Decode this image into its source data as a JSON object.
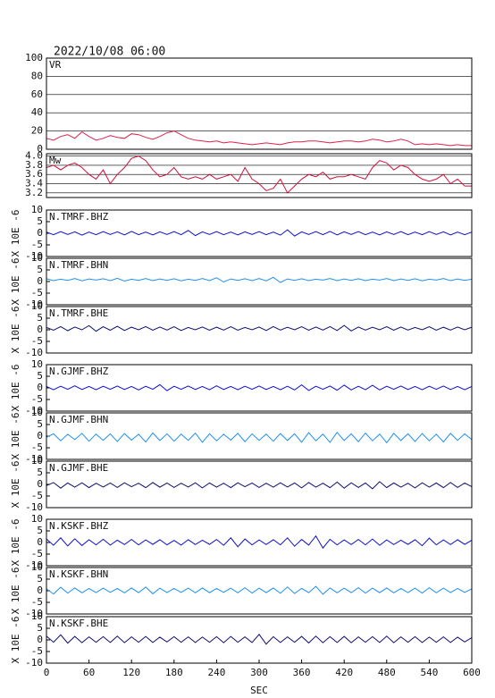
{
  "chart_data": {
    "type": "line",
    "title": "2022/10/08 06:00",
    "xlabel": "SEC",
    "xlim": [
      0,
      600
    ],
    "xticks": [
      0,
      60,
      120,
      180,
      240,
      300,
      360,
      420,
      480,
      540,
      600
    ],
    "x": [
      0,
      10,
      20,
      30,
      40,
      50,
      60,
      70,
      80,
      90,
      100,
      110,
      120,
      130,
      140,
      150,
      160,
      170,
      180,
      190,
      200,
      210,
      220,
      230,
      240,
      250,
      260,
      270,
      280,
      290,
      300,
      310,
      320,
      330,
      340,
      350,
      360,
      370,
      380,
      390,
      400,
      410,
      420,
      430,
      440,
      450,
      460,
      470,
      480,
      490,
      500,
      510,
      520,
      530,
      540,
      550,
      560,
      570,
      580,
      590,
      600
    ],
    "panels": [
      {
        "name": "VR",
        "ylim": [
          0,
          100
        ],
        "yticks": [
          0,
          20,
          40,
          60,
          80,
          100
        ],
        "grid": true,
        "series": [
          {
            "color": "#e0204a",
            "values": [
              12,
              10,
              14,
              16,
              12,
              19,
              14,
              10,
              12,
              15,
              13,
              12,
              17,
              16,
              13,
              11,
              14,
              18,
              20,
              16,
              12,
              10,
              9,
              8,
              9,
              7,
              8,
              7,
              6,
              5,
              6,
              7,
              6,
              5,
              7,
              8,
              8,
              9,
              9,
              8,
              7,
              8,
              9,
              9,
              8,
              9,
              11,
              10,
              8,
              9,
              11,
              9,
              5,
              6,
              5,
              6,
              5,
              4,
              5,
              4,
              4
            ]
          }
        ]
      },
      {
        "name": "Mw",
        "ylim": [
          3.1,
          4.05
        ],
        "yticks": [
          3.2,
          3.4,
          3.6,
          3.8,
          {
            "value": 4,
            "label": "4.0"
          }
        ],
        "grid": true,
        "series": [
          {
            "color": "#d0103c",
            "values": [
              3.75,
              3.8,
              3.7,
              3.8,
              3.85,
              3.75,
              3.6,
              3.5,
              3.7,
              3.4,
              3.6,
              3.75,
              3.95,
              4.0,
              3.9,
              3.7,
              3.55,
              3.6,
              3.75,
              3.55,
              3.5,
              3.55,
              3.5,
              3.6,
              3.5,
              3.55,
              3.6,
              3.45,
              3.75,
              3.5,
              3.4,
              3.25,
              3.3,
              3.5,
              3.2,
              3.35,
              3.5,
              3.6,
              3.55,
              3.65,
              3.5,
              3.55,
              3.55,
              3.6,
              3.55,
              3.5,
              3.75,
              3.9,
              3.85,
              3.7,
              3.8,
              3.75,
              3.6,
              3.5,
              3.45,
              3.5,
              3.6,
              3.4,
              3.5,
              3.35,
              3.35
            ]
          }
        ]
      },
      {
        "name": "N.TMRF.BHZ",
        "ylabel": "X 10E -6",
        "ylim": [
          -10,
          10
        ],
        "yticks": [
          -10,
          -5,
          0,
          5,
          10
        ],
        "series": [
          {
            "color": "#1010d0",
            "values": [
              0.5,
              -0.6,
              0.7,
              -0.5,
              0.6,
              -0.8,
              0.5,
              -0.6,
              0.7,
              -0.5,
              0.6,
              -0.7,
              0.8,
              -0.6,
              0.5,
              -0.7,
              0.6,
              -0.5,
              0.7,
              -0.6,
              1.2,
              -1.0,
              0.6,
              -0.5,
              0.7,
              -0.6,
              0.5,
              -0.7,
              0.6,
              -0.5,
              0.7,
              -0.6,
              0.5,
              -0.8,
              1.5,
              -1.2,
              0.6,
              -0.5,
              0.7,
              -0.6,
              0.8,
              -0.7,
              0.6,
              -0.5,
              0.7,
              -0.6,
              0.5,
              -0.7,
              0.6,
              -0.5,
              0.7,
              -0.6,
              0.5,
              -0.6,
              0.7,
              -0.5,
              0.6,
              -0.7,
              0.5,
              -0.6,
              0.5
            ]
          }
        ]
      },
      {
        "name": "N.TMRF.BHN",
        "ylabel": "X 10E -6",
        "ylim": [
          -10,
          10
        ],
        "yticks": [
          -10,
          -5,
          0,
          5,
          10
        ],
        "series": [
          {
            "color": "#2090f0",
            "values": [
              1.2,
              0.4,
              1.0,
              0.5,
              1.3,
              0.3,
              1.1,
              0.6,
              1.2,
              0.4,
              1.4,
              0.2,
              1.0,
              0.5,
              1.3,
              0.4,
              1.1,
              0.5,
              1.2,
              0.3,
              1.0,
              0.5,
              1.3,
              0.4,
              1.6,
              -0.2,
              1.1,
              0.5,
              1.2,
              0.4,
              1.3,
              0.3,
              1.8,
              -0.4,
              1.1,
              0.5,
              1.2,
              0.4,
              1.0,
              0.6,
              1.3,
              0.4,
              1.1,
              0.5,
              1.2,
              0.4,
              1.0,
              0.6,
              1.3,
              0.4,
              1.1,
              0.5,
              1.2,
              0.3,
              1.0,
              0.6,
              1.3,
              0.4,
              1.1,
              0.5,
              1.0
            ]
          }
        ]
      },
      {
        "name": "N.TMRF.BHE",
        "ylabel": "X 10E -6",
        "ylim": [
          -10,
          10
        ],
        "yticks": [
          -10,
          -5,
          0,
          5,
          10
        ],
        "series": [
          {
            "color": "#101070",
            "values": [
              1.0,
              -0.2,
              1.4,
              -0.4,
              1.2,
              0.0,
              1.8,
              -0.6,
              1.3,
              -0.2,
              1.5,
              -0.3,
              1.1,
              0.0,
              1.4,
              -0.2,
              1.2,
              -0.1,
              1.3,
              -0.3,
              1.0,
              0.0,
              1.2,
              -0.2,
              1.1,
              -0.1,
              1.3,
              -0.2,
              1.0,
              0.0,
              1.2,
              -0.3,
              1.4,
              -0.1,
              1.1,
              0.0,
              1.3,
              -0.2,
              1.2,
              -0.1,
              1.4,
              -0.3,
              1.9,
              -0.5,
              1.2,
              -0.1,
              1.1,
              0.0,
              1.3,
              -0.2,
              1.2,
              -0.1,
              1.0,
              0.0,
              1.3,
              -0.2,
              1.1,
              -0.1,
              1.2,
              0.0,
              1.1
            ]
          }
        ]
      },
      {
        "name": "N.GJMF.BHZ",
        "ylabel": "X 10E -6",
        "ylim": [
          -10,
          10
        ],
        "yticks": [
          -10,
          -5,
          0,
          5,
          10
        ],
        "series": [
          {
            "color": "#1010d0",
            "values": [
              0.6,
              -0.8,
              0.7,
              -0.6,
              0.9,
              -0.7,
              0.6,
              -0.8,
              0.7,
              -0.6,
              0.8,
              -0.7,
              0.6,
              -0.9,
              0.7,
              -0.6,
              1.4,
              -1.2,
              0.7,
              -0.6,
              0.8,
              -0.7,
              0.6,
              -0.8,
              0.9,
              -0.7,
              0.6,
              -0.8,
              0.7,
              -0.6,
              0.8,
              -0.7,
              0.6,
              -0.8,
              0.7,
              -0.9,
              1.3,
              -1.1,
              0.7,
              -0.6,
              0.8,
              -1.0,
              1.2,
              -0.9,
              0.7,
              -0.8,
              1.1,
              -0.9,
              0.7,
              -0.6,
              0.8,
              -0.7,
              0.6,
              -0.8,
              0.7,
              -0.6,
              0.8,
              -0.7,
              0.6,
              -0.8,
              0.6
            ]
          }
        ]
      },
      {
        "name": "N.GJMF.BHN",
        "ylabel": "X 10E -6",
        "ylim": [
          -10,
          10
        ],
        "yticks": [
          -10,
          -5,
          0,
          5,
          10
        ],
        "series": [
          {
            "color": "#2090f0",
            "values": [
              -0.5,
              1.0,
              -2.0,
              0.8,
              -1.5,
              1.2,
              -2.2,
              0.9,
              -1.8,
              1.0,
              -2.3,
              1.1,
              -1.7,
              0.8,
              -2.5,
              1.4,
              -1.9,
              1.0,
              -2.2,
              0.9,
              -1.8,
              1.3,
              -2.6,
              1.0,
              -2.0,
              0.8,
              -1.7,
              1.2,
              -2.4,
              1.0,
              -1.8,
              0.9,
              -2.2,
              1.1,
              -1.9,
              1.0,
              -2.6,
              1.5,
              -2.0,
              0.9,
              -2.7,
              1.6,
              -1.9,
              1.0,
              -2.4,
              1.3,
              -2.0,
              0.9,
              -2.8,
              1.2,
              -1.9,
              1.0,
              -2.3,
              1.1,
              -2.0,
              0.8,
              -2.5,
              1.2,
              -1.8,
              1.0,
              -1.5
            ]
          }
        ]
      },
      {
        "name": "N.GJMF.BHE",
        "ylabel": "X 10E -6",
        "ylim": [
          -10,
          10
        ],
        "yticks": [
          -10,
          -5,
          0,
          5,
          10
        ],
        "series": [
          {
            "color": "#101070",
            "values": [
              -0.5,
              0.8,
              -1.6,
              0.6,
              -1.2,
              0.7,
              -1.4,
              0.5,
              -1.1,
              0.6,
              -1.3,
              0.7,
              -1.0,
              0.5,
              -1.4,
              0.8,
              -1.2,
              0.6,
              -1.3,
              0.5,
              -1.1,
              0.7,
              -1.5,
              0.6,
              -1.2,
              0.5,
              -1.4,
              0.7,
              -1.0,
              0.6,
              -1.3,
              0.5,
              -1.2,
              0.7,
              -1.1,
              0.6,
              -1.5,
              0.8,
              -1.2,
              0.5,
              -1.4,
              1.0,
              -1.6,
              0.7,
              -1.3,
              0.6,
              -1.9,
              1.2,
              -1.4,
              0.6,
              -1.2,
              0.5,
              -1.5,
              0.7,
              -1.2,
              0.6,
              -1.4,
              0.8,
              -1.3,
              0.6,
              -1.0
            ]
          }
        ]
      },
      {
        "name": "N.KSKF.BHZ",
        "ylabel": "X 10E -6",
        "ylim": [
          -10,
          10
        ],
        "yticks": [
          -10,
          -5,
          0,
          5,
          10
        ],
        "series": [
          {
            "color": "#1010d0",
            "values": [
              1.5,
              -1.2,
              2.0,
              -1.5,
              1.6,
              -1.3,
              1.2,
              -1.0,
              1.4,
              -1.1,
              1.0,
              -0.9,
              1.3,
              -1.0,
              1.1,
              -0.8,
              1.2,
              -1.0,
              0.9,
              -1.1,
              1.2,
              -0.9,
              1.0,
              -0.8,
              1.3,
              -1.2,
              2.0,
              -1.8,
              1.5,
              -1.0,
              1.1,
              -0.9,
              1.2,
              -1.0,
              2.0,
              -1.6,
              1.3,
              -1.1,
              2.8,
              -2.4,
              1.4,
              -1.0,
              1.1,
              -0.9,
              1.3,
              -1.0,
              1.5,
              -1.2,
              1.1,
              -0.9,
              1.0,
              -0.8,
              1.2,
              -1.4,
              1.9,
              -1.0,
              1.1,
              -0.9,
              1.2,
              -0.8,
              1.0
            ]
          }
        ]
      },
      {
        "name": "N.KSKF.BHN",
        "ylabel": "X 10E -6",
        "ylim": [
          -10,
          10
        ],
        "yticks": [
          -10,
          -5,
          0,
          5,
          10
        ],
        "series": [
          {
            "color": "#2090f0",
            "values": [
              0.8,
              -1.4,
              1.5,
              -1.0,
              1.2,
              -0.9,
              1.0,
              -0.8,
              1.1,
              -0.7,
              1.0,
              -0.9,
              1.2,
              -0.8,
              1.6,
              -1.3,
              1.1,
              -0.8,
              1.0,
              -0.7,
              1.1,
              -0.9,
              1.2,
              -0.8,
              1.0,
              -0.7,
              1.1,
              -0.9,
              1.3,
              -1.0,
              1.1,
              -0.8,
              1.2,
              -1.1,
              1.6,
              -1.2,
              1.0,
              -0.8,
              1.9,
              -1.5,
              1.2,
              -0.9,
              1.1,
              -0.8,
              1.3,
              -1.0,
              1.1,
              -0.8,
              1.2,
              -0.9,
              1.0,
              -0.8,
              1.1,
              -1.0,
              1.3,
              -0.9,
              1.1,
              -0.8,
              1.0,
              -0.7,
              0.8
            ]
          }
        ]
      },
      {
        "name": "N.KSKF.BHE",
        "ylabel": "X 10E -6",
        "ylim": [
          -10,
          10
        ],
        "yticks": [
          -10,
          -5,
          0,
          5,
          10
        ],
        "series": [
          {
            "color": "#101070",
            "values": [
              1.6,
              -1.0,
              2.2,
              -1.4,
              1.5,
              -1.2,
              1.3,
              -1.0,
              1.4,
              -1.1,
              1.6,
              -1.2,
              1.3,
              -1.0,
              1.5,
              -1.1,
              1.2,
              -0.9,
              1.4,
              -1.0,
              1.3,
              -1.1,
              1.2,
              -1.0,
              1.4,
              -1.2,
              1.5,
              -1.0,
              1.3,
              -1.1,
              2.4,
              -1.8,
              1.4,
              -1.1,
              1.3,
              -1.0,
              1.5,
              -1.3,
              1.6,
              -1.2,
              1.4,
              -1.1,
              1.5,
              -1.2,
              1.3,
              -1.0,
              1.4,
              -1.1,
              1.6,
              -1.2,
              1.3,
              -1.0,
              1.4,
              -1.1,
              1.2,
              -1.0,
              1.3,
              -1.1,
              1.2,
              -0.9,
              1.0
            ]
          }
        ]
      }
    ]
  }
}
